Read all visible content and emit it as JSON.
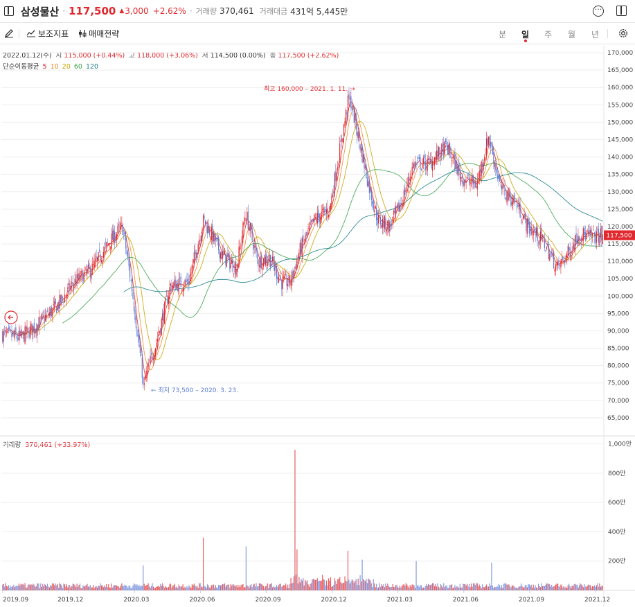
{
  "header": {
    "stock_name": "삼성물산",
    "price": "117,500",
    "change_arrow": "▲",
    "change": "3,000",
    "change_pct": "+2.62%",
    "volume_label": "거래량",
    "volume": "370,461",
    "amount_label": "거래대금",
    "amount": "431억 5,445만",
    "icons": [
      "sidebar-icon",
      "more-icon",
      "expand-icon"
    ]
  },
  "toolbar": {
    "draw_icon": "pencil-icon",
    "indicator_label": "보조지표",
    "strategy_label": "매매전략",
    "periods": [
      "분",
      "일",
      "주",
      "월",
      "년"
    ],
    "active_period": "일",
    "settings_icon": "gear-icon"
  },
  "ohlc": {
    "date": "2022.01.12(수)",
    "open_label": "시",
    "open": "115,000 (+0.44%)",
    "high_label": "고",
    "high": "118,000 (+3.06%)",
    "low_label": "저",
    "low": "114,500 (0.00%)",
    "close_label": "종",
    "close": "117,500 (+2.62%)"
  },
  "ma_legend": {
    "label": "단순이동평균",
    "items": [
      {
        "period": "5",
        "color": "#e0282e"
      },
      {
        "period": "10",
        "color": "#f08a2a"
      },
      {
        "period": "20",
        "color": "#c9a400"
      },
      {
        "period": "60",
        "color": "#3aa34a"
      },
      {
        "period": "120",
        "color": "#1a7f8a"
      }
    ]
  },
  "annotations": {
    "high": "최고 160,000 – 2021. 1. 11. →",
    "low": "← 최저 73,500 – 2020. 3. 23."
  },
  "volume_panel": {
    "label": "거래량",
    "value": "370,461 (+33.97%)"
  },
  "colors": {
    "up": "#e0282e",
    "down": "#5b7bd8",
    "grid": "#eeeeee"
  },
  "chart_data": [
    {
      "type": "candlestick",
      "title": "",
      "ylim": [
        60000,
        172000
      ],
      "y_ticks": [
        "170,000",
        "165,000",
        "160,000",
        "155,000",
        "150,000",
        "145,000",
        "140,000",
        "135,000",
        "130,000",
        "125,000",
        "120,000",
        "115,000",
        "110,000",
        "105,000",
        "100,000",
        "95,000",
        "90,000",
        "85,000",
        "80,000",
        "75,000",
        "70,000",
        "65,000"
      ],
      "x_ticks": [
        "2019.09",
        "2019.12",
        "2020.03",
        "2020.06",
        "2020.09",
        "2020.12",
        "2021.03",
        "2021.06",
        "2021.09",
        "2021.12"
      ],
      "current_price_label": "117,500",
      "current_price": 117500,
      "close_keypoints": [
        {
          "t": 0.0,
          "close": 89000
        },
        {
          "t": 0.03,
          "close": 88000
        },
        {
          "t": 0.06,
          "close": 92000
        },
        {
          "t": 0.09,
          "close": 97000
        },
        {
          "t": 0.12,
          "close": 104000
        },
        {
          "t": 0.15,
          "close": 108000
        },
        {
          "t": 0.18,
          "close": 116000
        },
        {
          "t": 0.2,
          "close": 120000
        },
        {
          "t": 0.215,
          "close": 103000
        },
        {
          "t": 0.235,
          "close": 75000
        },
        {
          "t": 0.255,
          "close": 86000
        },
        {
          "t": 0.28,
          "close": 103000
        },
        {
          "t": 0.31,
          "close": 104000
        },
        {
          "t": 0.335,
          "close": 122000
        },
        {
          "t": 0.365,
          "close": 112000
        },
        {
          "t": 0.39,
          "close": 108000
        },
        {
          "t": 0.405,
          "close": 124000
        },
        {
          "t": 0.425,
          "close": 110000
        },
        {
          "t": 0.445,
          "close": 111000
        },
        {
          "t": 0.465,
          "close": 104000
        },
        {
          "t": 0.48,
          "close": 104000
        },
        {
          "t": 0.495,
          "close": 113000
        },
        {
          "t": 0.52,
          "close": 122000
        },
        {
          "t": 0.545,
          "close": 125000
        },
        {
          "t": 0.565,
          "close": 145000
        },
        {
          "t": 0.578,
          "close": 158000
        },
        {
          "t": 0.59,
          "close": 148000
        },
        {
          "t": 0.61,
          "close": 132000
        },
        {
          "t": 0.625,
          "close": 122000
        },
        {
          "t": 0.645,
          "close": 120000
        },
        {
          "t": 0.665,
          "close": 127000
        },
        {
          "t": 0.685,
          "close": 138000
        },
        {
          "t": 0.71,
          "close": 138000
        },
        {
          "t": 0.74,
          "close": 143000
        },
        {
          "t": 0.765,
          "close": 134000
        },
        {
          "t": 0.79,
          "close": 132000
        },
        {
          "t": 0.81,
          "close": 146000
        },
        {
          "t": 0.83,
          "close": 131000
        },
        {
          "t": 0.855,
          "close": 127000
        },
        {
          "t": 0.875,
          "close": 120000
        },
        {
          "t": 0.9,
          "close": 116000
        },
        {
          "t": 0.925,
          "close": 108000
        },
        {
          "t": 0.945,
          "close": 113000
        },
        {
          "t": 0.96,
          "close": 118000
        },
        {
          "t": 0.98,
          "close": 117000
        },
        {
          "t": 1.0,
          "close": 117500
        }
      ],
      "high": {
        "value": 160000,
        "date": "2021. 1. 11."
      },
      "low": {
        "value": 73500,
        "date": "2020. 3. 23."
      },
      "series": [
        {
          "name": "5",
          "type": "sma"
        },
        {
          "name": "10",
          "type": "sma"
        },
        {
          "name": "20",
          "type": "sma"
        },
        {
          "name": "60",
          "type": "sma"
        },
        {
          "name": "120",
          "type": "sma"
        }
      ]
    },
    {
      "type": "bar",
      "title": "",
      "ylim": [
        0,
        1050
      ],
      "y_ticks": [
        "1,000만",
        "800만",
        "600만",
        "400만",
        "200만"
      ],
      "unit": "만",
      "volume_spikes": [
        {
          "t": 0.235,
          "value": 170
        },
        {
          "t": 0.335,
          "value": 360
        },
        {
          "t": 0.405,
          "value": 300
        },
        {
          "t": 0.487,
          "value": 960
        },
        {
          "t": 0.49,
          "value": 280
        },
        {
          "t": 0.575,
          "value": 270
        },
        {
          "t": 0.6,
          "value": 210
        },
        {
          "t": 0.815,
          "value": 190
        },
        {
          "t": 0.69,
          "value": 200
        }
      ]
    }
  ]
}
